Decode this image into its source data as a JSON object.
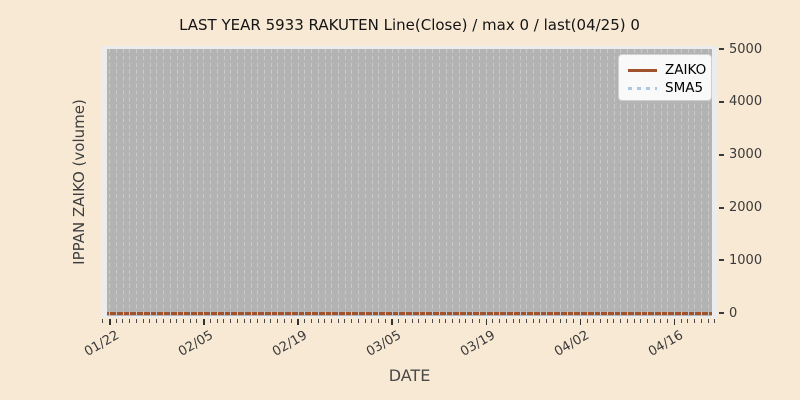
{
  "figure": {
    "title": "LAST YEAR 5933 RAKUTEN Line(Close) / max 0 / last(04/25) 0"
  },
  "chart_data": {
    "type": "line",
    "title": "LAST YEAR 5933 RAKUTEN Line(Close) / max 0 / last(04/25) 0",
    "xlabel": "DATE",
    "ylabel": "IPPAN ZAIKO (volume)",
    "x_range": [
      "01/22",
      "04/25"
    ],
    "x_tick_labels": [
      "01/22",
      "02/05",
      "02/19",
      "03/05",
      "03/19",
      "04/02",
      "04/16"
    ],
    "y_tick_labels": [
      "0",
      "1000",
      "2000",
      "3000",
      "4000",
      "5000"
    ],
    "ylim": [
      0,
      5000
    ],
    "series": [
      {
        "name": "ZAIKO",
        "style": "solid",
        "color": "#a0522d",
        "constant_value": 0,
        "max": 0,
        "last": {
          "date": "04/25",
          "value": 0
        }
      },
      {
        "name": "SMA5",
        "style": "dotted",
        "color": "#a9c7e7",
        "constant_value": 0
      }
    ],
    "legend_position": "upper right",
    "grid": "vertical dashed gridlines, one per day",
    "annotations": {
      "max": 0,
      "last_date": "04/25",
      "last_value": 0
    }
  },
  "colors": {
    "figure_background": "#f8e9d4",
    "axes_margin": "#ececec",
    "plot_background": "#b3b3b3",
    "gridline": "#c9c9c9",
    "zaiko_line": "#a0522d",
    "sma5_line": "#a9c7e7",
    "tick_text": "#3a3a3a",
    "title_text": "#141414"
  }
}
